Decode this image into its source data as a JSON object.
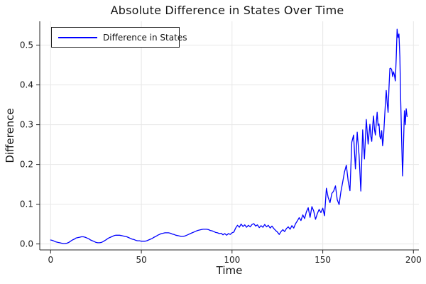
{
  "chart_data": {
    "type": "line",
    "title": "Absolute Difference in States Over Time",
    "xlabel": "Time",
    "ylabel": "Difference",
    "grid": true,
    "legend_position": "top-left",
    "line_color": "#0000ff",
    "axis_color": "#262626",
    "grid_color": "#e7e7e7",
    "xlim": [
      -6,
      203
    ],
    "ylim": [
      -0.015,
      0.56
    ],
    "xticks": [
      0,
      50,
      100,
      150,
      200
    ],
    "xtick_labels": [
      "0",
      "50",
      "100",
      "150",
      "200"
    ],
    "yticks": [
      0.0,
      0.1,
      0.2,
      0.3,
      0.4,
      0.5
    ],
    "ytick_labels": [
      "0.0",
      "0.1",
      "0.2",
      "0.3",
      "0.4",
      "0.5"
    ],
    "series": [
      {
        "name": "Difference in States",
        "x": [
          0,
          1,
          2,
          3,
          4,
          5,
          6,
          7,
          8,
          9,
          10,
          11,
          12,
          13,
          14,
          15,
          16,
          17,
          18,
          19,
          20,
          21,
          22,
          23,
          24,
          25,
          26,
          27,
          28,
          29,
          30,
          31,
          32,
          33,
          34,
          35,
          36,
          37,
          38,
          39,
          40,
          41,
          42,
          43,
          44,
          45,
          46,
          47,
          48,
          49,
          50,
          51,
          52,
          53,
          54,
          55,
          56,
          57,
          58,
          59,
          60,
          61,
          62,
          63,
          64,
          65,
          66,
          67,
          68,
          69,
          70,
          71,
          72,
          73,
          74,
          75,
          76,
          77,
          78,
          79,
          80,
          81,
          82,
          83,
          84,
          85,
          86,
          87,
          88,
          89,
          90,
          91,
          92,
          93,
          94,
          95,
          96,
          97,
          98,
          99,
          100,
          101,
          102,
          103,
          104,
          105,
          106,
          107,
          108,
          109,
          110,
          111,
          112,
          113,
          114,
          115,
          116,
          117,
          118,
          119,
          120,
          121,
          122,
          123,
          124,
          125,
          126,
          127,
          128,
          129,
          130,
          131,
          132,
          133,
          134,
          135,
          136,
          137,
          138,
          139,
          140,
          141,
          142,
          143,
          144,
          145,
          146,
          147,
          148,
          149,
          150,
          151,
          152,
          153,
          154,
          155,
          156,
          157,
          158,
          159,
          160,
          161,
          162,
          163,
          164,
          165,
          166,
          167,
          168,
          169,
          170,
          171,
          172,
          173,
          174,
          175,
          176,
          176.5,
          177,
          177.5,
          178,
          178.5,
          179,
          179.5,
          180,
          180.5,
          181,
          181.5,
          182,
          182.5,
          183,
          183.5,
          184,
          184.5,
          185,
          185.5,
          186,
          186.5,
          187,
          187.5,
          188,
          188.5,
          189,
          189.5,
          190,
          190.5,
          191,
          191.5,
          192,
          192.5,
          193,
          193.5,
          194,
          194.5,
          195,
          195.5,
          196,
          196.5
        ],
        "y": [
          0.01,
          0.009,
          0.007,
          0.005,
          0.004,
          0.003,
          0.002,
          0.001,
          0.001,
          0.002,
          0.004,
          0.007,
          0.01,
          0.012,
          0.015,
          0.016,
          0.017,
          0.018,
          0.018,
          0.017,
          0.015,
          0.013,
          0.01,
          0.008,
          0.006,
          0.004,
          0.003,
          0.003,
          0.004,
          0.006,
          0.009,
          0.012,
          0.015,
          0.017,
          0.019,
          0.021,
          0.022,
          0.022,
          0.022,
          0.021,
          0.02,
          0.019,
          0.018,
          0.016,
          0.014,
          0.012,
          0.011,
          0.009,
          0.008,
          0.008,
          0.007,
          0.007,
          0.007,
          0.008,
          0.01,
          0.012,
          0.014,
          0.017,
          0.019,
          0.022,
          0.024,
          0.026,
          0.027,
          0.028,
          0.028,
          0.028,
          0.027,
          0.025,
          0.024,
          0.022,
          0.021,
          0.02,
          0.019,
          0.019,
          0.02,
          0.022,
          0.024,
          0.026,
          0.028,
          0.03,
          0.032,
          0.034,
          0.035,
          0.036,
          0.037,
          0.037,
          0.037,
          0.036,
          0.034,
          0.033,
          0.031,
          0.029,
          0.028,
          0.026,
          0.027,
          0.023,
          0.026,
          0.022,
          0.026,
          0.024,
          0.028,
          0.03,
          0.04,
          0.047,
          0.042,
          0.05,
          0.044,
          0.048,
          0.042,
          0.047,
          0.043,
          0.049,
          0.051,
          0.045,
          0.048,
          0.041,
          0.046,
          0.042,
          0.049,
          0.043,
          0.047,
          0.04,
          0.045,
          0.039,
          0.034,
          0.03,
          0.024,
          0.031,
          0.036,
          0.031,
          0.039,
          0.043,
          0.037,
          0.046,
          0.04,
          0.051,
          0.058,
          0.066,
          0.059,
          0.073,
          0.064,
          0.081,
          0.091,
          0.067,
          0.094,
          0.083,
          0.062,
          0.076,
          0.087,
          0.079,
          0.09,
          0.071,
          0.14,
          0.117,
          0.104,
          0.127,
          0.133,
          0.146,
          0.111,
          0.099,
          0.131,
          0.156,
          0.181,
          0.198,
          0.158,
          0.134,
          0.256,
          0.274,
          0.189,
          0.281,
          0.224,
          0.133,
          0.287,
          0.214,
          0.313,
          0.251,
          0.301,
          0.27,
          0.258,
          0.295,
          0.322,
          0.288,
          0.274,
          0.305,
          0.331,
          0.298,
          0.302,
          0.27,
          0.264,
          0.285,
          0.247,
          0.27,
          0.312,
          0.35,
          0.386,
          0.355,
          0.331,
          0.39,
          0.441,
          0.442,
          0.438,
          0.421,
          0.433,
          0.425,
          0.41,
          0.47,
          0.54,
          0.519,
          0.528,
          0.47,
          0.36,
          0.26,
          0.171,
          0.25,
          0.335,
          0.3,
          0.34,
          0.32
        ]
      }
    ]
  }
}
